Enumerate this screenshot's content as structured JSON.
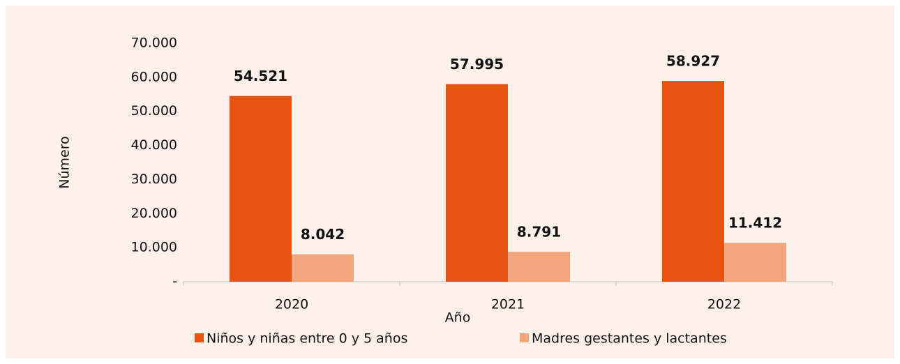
{
  "chart_data": {
    "type": "bar",
    "categories": [
      "2020",
      "2021",
      "2022"
    ],
    "series": [
      {
        "name": "Niños y niñas entre 0 y 5 años",
        "color": "#e8540f",
        "values": [
          54521,
          57995,
          58927
        ],
        "value_labels": [
          "54.521",
          "57.995",
          "58.927"
        ]
      },
      {
        "name": "Madres gestantes y lactantes",
        "color": "#f3a57e",
        "values": [
          8042,
          8791,
          11412
        ],
        "value_labels": [
          "8.042",
          "8.791",
          "11.412"
        ]
      }
    ],
    "ylim": [
      0,
      70000
    ],
    "yticks": [
      {
        "value": 0,
        "label": "-"
      },
      {
        "value": 10000,
        "label": "10.000"
      },
      {
        "value": 20000,
        "label": "20.000"
      },
      {
        "value": 30000,
        "label": "30.000"
      },
      {
        "value": 40000,
        "label": "40.000"
      },
      {
        "value": 50000,
        "label": "50.000"
      },
      {
        "value": 60000,
        "label": "60.000"
      },
      {
        "value": 70000,
        "label": "70.000"
      }
    ],
    "y_label": "Número",
    "x_label": "Año",
    "grid": false,
    "legend": "bottom"
  }
}
